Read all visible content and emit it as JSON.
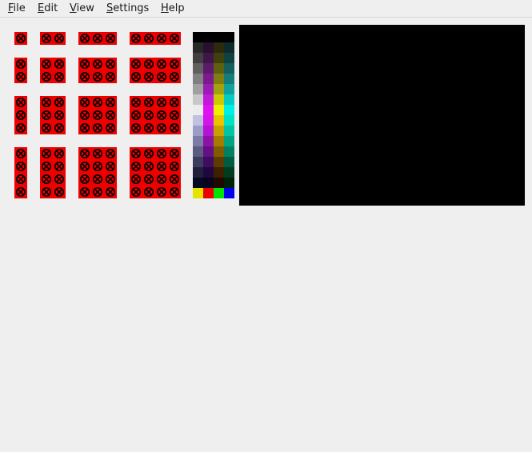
{
  "menu": {
    "items": [
      {
        "first": "F",
        "rest": "ile"
      },
      {
        "first": "E",
        "rest": "dit"
      },
      {
        "first": "V",
        "rest": "iew"
      },
      {
        "first": "S",
        "rest": "ettings"
      },
      {
        "first": "H",
        "rest": "elp"
      }
    ]
  },
  "tiles": {
    "icon": "missing-image-x-icon",
    "tile_color": "#ee0000",
    "mark_color": "#000000",
    "groups": [
      {
        "cols": 1,
        "rows": 1
      },
      {
        "cols": 2,
        "rows": 1
      },
      {
        "cols": 3,
        "rows": 1
      },
      {
        "cols": 4,
        "rows": 1
      },
      {
        "cols": 1,
        "rows": 2
      },
      {
        "cols": 2,
        "rows": 2
      },
      {
        "cols": 3,
        "rows": 2
      },
      {
        "cols": 4,
        "rows": 2
      },
      {
        "cols": 1,
        "rows": 3
      },
      {
        "cols": 2,
        "rows": 3
      },
      {
        "cols": 3,
        "rows": 3
      },
      {
        "cols": 4,
        "rows": 3
      },
      {
        "cols": 1,
        "rows": 4
      },
      {
        "cols": 2,
        "rows": 4
      },
      {
        "cols": 3,
        "rows": 4
      },
      {
        "cols": 4,
        "rows": 4
      }
    ]
  },
  "palette": {
    "rows": [
      [
        "#000000",
        "#000000",
        "#000000",
        "#000000"
      ],
      [
        "#282828",
        "#2a0f30",
        "#2a2a0e",
        "#0f2a2a"
      ],
      [
        "#404040",
        "#3f1648",
        "#40400f",
        "#10403f"
      ],
      [
        "#606060",
        "#5c1a6a",
        "#5f5f11",
        "#135f5d"
      ],
      [
        "#808080",
        "#7a1a8c",
        "#7d7d12",
        "#147d7a"
      ],
      [
        "#a0a0a0",
        "#9c1cb2",
        "#a2a20f",
        "#10a29d"
      ],
      [
        "#c8c8c8",
        "#c01ad8",
        "#cbcb05",
        "#06cbc3"
      ],
      [
        "#ececec",
        "#e012f2",
        "#efef00",
        "#00efe4"
      ],
      [
        "#c0c0e0",
        "#d414ea",
        "#e8c400",
        "#00e2c4"
      ],
      [
        "#9c9cc8",
        "#b414d0",
        "#c8a000",
        "#00c4a4"
      ],
      [
        "#7c7ca4",
        "#8c12a8",
        "#a47c00",
        "#00a480"
      ],
      [
        "#5c5c80",
        "#640f84",
        "#805c00",
        "#008060"
      ],
      [
        "#3c3c5c",
        "#400c60",
        "#5c3c00",
        "#005c40"
      ],
      [
        "#20203c",
        "#20083c",
        "#3c2000",
        "#003c20"
      ],
      [
        "#080820",
        "#080420",
        "#200800",
        "#002008"
      ],
      [
        "#e4e400",
        "#ee0000",
        "#00e400",
        "#0000ee"
      ]
    ]
  },
  "canvas": {
    "background": "#000000"
  }
}
